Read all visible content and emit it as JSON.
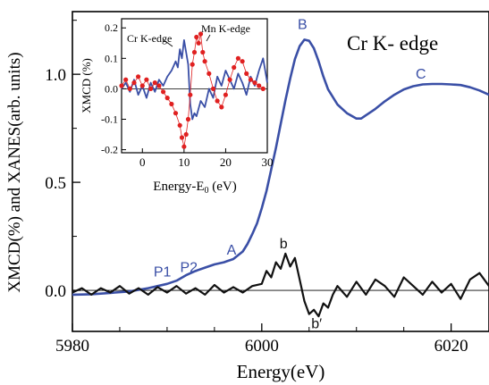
{
  "chart_data": [
    {
      "id": "main",
      "type": "line",
      "xlabel": "Energy(eV)",
      "ylabel": "XMCD(%) and XANES(arb. units)",
      "xlim": [
        5980,
        6024
      ],
      "ylim": [
        -0.19,
        1.29
      ],
      "x_ticks": [
        5980,
        6000,
        6020
      ],
      "x_tick_labels": [
        "5980",
        "6000",
        "6020"
      ],
      "y_ticks": [
        0.0,
        0.5,
        1.0
      ],
      "y_tick_labels": [
        "0.0",
        "0.5",
        "1.0"
      ],
      "label_text": "Cr K- edge",
      "colors": {
        "xanes": "#3a4fa6",
        "xmcd": "#111111"
      },
      "series": [
        {
          "key": "xanes",
          "x": [
            5980,
            5982,
            5984,
            5986,
            5988,
            5990,
            5991,
            5992,
            5993,
            5994,
            5995,
            5996,
            5997,
            5998,
            5998.5,
            5999,
            5999.5,
            6000,
            6000.5,
            6001,
            6001.5,
            6002,
            6002.5,
            6003,
            6003.5,
            6004,
            6004.5,
            6005,
            6005.5,
            6006,
            6006.5,
            6007,
            6008,
            6009,
            6010,
            6010.5,
            6011,
            6012,
            6013,
            6014,
            6015,
            6016,
            6017,
            6018,
            6019,
            6020,
            6021,
            6022,
            6023,
            6024
          ],
          "y": [
            -0.02,
            -0.018,
            -0.012,
            -0.005,
            0.01,
            0.03,
            0.045,
            0.07,
            0.09,
            0.105,
            0.12,
            0.13,
            0.145,
            0.18,
            0.215,
            0.26,
            0.31,
            0.38,
            0.46,
            0.56,
            0.66,
            0.77,
            0.88,
            0.98,
            1.07,
            1.13,
            1.16,
            1.155,
            1.12,
            1.06,
            0.99,
            0.93,
            0.86,
            0.82,
            0.795,
            0.795,
            0.81,
            0.84,
            0.875,
            0.905,
            0.93,
            0.945,
            0.953,
            0.955,
            0.955,
            0.953,
            0.95,
            0.94,
            0.925,
            0.905
          ]
        },
        {
          "key": "xmcd",
          "x": [
            5980,
            5981,
            5982,
            5983,
            5984,
            5985,
            5986,
            5987,
            5988,
            5989,
            5990,
            5991,
            5992,
            5993,
            5994,
            5995,
            5996,
            5997,
            5998,
            5999,
            6000,
            6000.5,
            6001,
            6001.5,
            6002,
            6002.5,
            6003,
            6003.5,
            6004,
            6004.5,
            6005,
            6005.5,
            6006,
            6006.5,
            6007,
            6007.5,
            6008,
            6009,
            6010,
            6011,
            6012,
            6013,
            6014,
            6015,
            6016,
            6017,
            6018,
            6019,
            6020,
            6021,
            6022,
            6023,
            6024
          ],
          "y": [
            -0.01,
            0.01,
            -0.02,
            0.01,
            -0.01,
            0.02,
            -0.015,
            0.01,
            -0.02,
            0.015,
            -0.01,
            0.02,
            -0.015,
            0.01,
            -0.02,
            0.025,
            -0.01,
            0.015,
            -0.01,
            0.02,
            0.03,
            0.09,
            0.06,
            0.13,
            0.1,
            0.17,
            0.11,
            0.15,
            0.05,
            -0.05,
            -0.11,
            -0.09,
            -0.12,
            -0.06,
            -0.08,
            -0.02,
            0.02,
            -0.03,
            0.04,
            -0.02,
            0.05,
            0.02,
            -0.03,
            0.06,
            0.02,
            -0.02,
            0.04,
            -0.01,
            0.03,
            -0.04,
            0.05,
            0.08,
            0.02
          ]
        }
      ],
      "annotations": [
        {
          "text": "P1",
          "x": 5989.5,
          "y": 0.065,
          "color": "#3a4fa6"
        },
        {
          "text": "P2",
          "x": 5992.3,
          "y": 0.085,
          "color": "#3a4fa6"
        },
        {
          "text": "A",
          "x": 5996.8,
          "y": 0.165,
          "color": "#3a4fa6"
        },
        {
          "text": "B",
          "x": 6004.3,
          "y": 1.21,
          "color": "#3a4fa6"
        },
        {
          "text": "C",
          "x": 6016.8,
          "y": 0.98,
          "color": "#3a4fa6"
        },
        {
          "text": "b",
          "x": 6002.3,
          "y": 0.195,
          "color": "#111111"
        },
        {
          "text": "b′",
          "x": 6005.8,
          "y": -0.175,
          "color": "#111111"
        }
      ]
    },
    {
      "id": "inset",
      "type": "line",
      "xlabel": "Energy-E0 (eV)",
      "ylabel": "XMCD (%)",
      "xlim": [
        -5,
        30
      ],
      "ylim": [
        -0.21,
        0.23
      ],
      "x_ticks": [
        0,
        10,
        20,
        30
      ],
      "x_tick_labels": [
        "0",
        "10",
        "20",
        "30"
      ],
      "y_ticks": [
        -0.2,
        -0.1,
        0.0,
        0.1,
        0.2
      ],
      "y_tick_labels": [
        "-0.2",
        "-0.1",
        "0.0",
        "0.1",
        "0.2"
      ],
      "colors": {
        "cr": "#3a4fa6",
        "mn": "#e02020"
      },
      "series": [
        {
          "key": "cr",
          "label": "Cr K-edge",
          "x": [
            -5,
            -4,
            -3,
            -2,
            -1,
            0,
            1,
            2,
            3,
            4,
            5,
            6,
            7,
            8,
            8.5,
            9,
            9.5,
            10,
            10.5,
            11,
            11.5,
            12,
            12.5,
            13,
            14,
            15,
            16,
            17,
            18,
            19,
            20,
            21,
            22,
            23,
            24,
            25,
            26,
            27,
            28,
            29,
            30
          ],
          "y": [
            0.0,
            0.02,
            -0.01,
            0.03,
            -0.02,
            0.01,
            -0.03,
            0.02,
            -0.01,
            0.03,
            0.01,
            0.04,
            0.06,
            0.09,
            0.07,
            0.13,
            0.1,
            0.16,
            0.12,
            0.08,
            -0.05,
            -0.1,
            -0.08,
            -0.09,
            -0.04,
            -0.06,
            0.0,
            -0.03,
            0.04,
            0.01,
            0.06,
            0.03,
            0.0,
            0.05,
            0.02,
            -0.02,
            0.04,
            0.01,
            0.06,
            0.1,
            0.02
          ]
        },
        {
          "key": "mn",
          "label": "Mn K-edge",
          "x": [
            -5,
            -4,
            -3,
            -2,
            -1,
            0,
            1,
            2,
            3,
            4,
            5,
            6,
            7,
            8,
            9,
            9.5,
            10,
            10.5,
            11,
            11.5,
            12,
            12.5,
            13,
            13.5,
            14,
            14.5,
            15,
            16,
            17,
            18,
            19,
            20,
            21,
            22,
            23,
            24,
            25,
            26,
            27,
            28,
            29
          ],
          "y": [
            0.01,
            0.03,
            0.0,
            0.02,
            0.04,
            0.01,
            0.03,
            0.0,
            0.02,
            0.01,
            -0.01,
            -0.03,
            -0.05,
            -0.08,
            -0.12,
            -0.16,
            -0.19,
            -0.15,
            -0.1,
            -0.02,
            0.08,
            0.12,
            0.17,
            0.15,
            0.18,
            0.12,
            0.09,
            0.05,
            0.0,
            -0.04,
            -0.06,
            -0.02,
            0.03,
            0.07,
            0.1,
            0.09,
            0.05,
            0.03,
            0.02,
            0.01,
            0.0
          ]
        }
      ]
    }
  ]
}
